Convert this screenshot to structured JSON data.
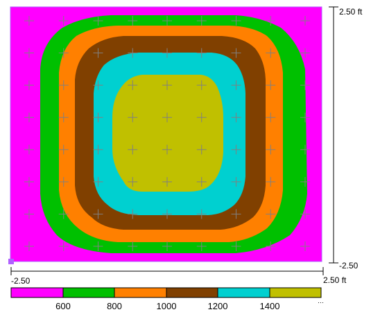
{
  "plot": {
    "x_axis": {
      "min_label": "-2.50",
      "max_label": "2.50 ft"
    },
    "y_axis": {
      "max_label": "2.50 ft",
      "min_label": "-2.50"
    }
  },
  "chart_data": {
    "type": "heatmap",
    "description_free": "",
    "x_range": [
      -2.5,
      2.5
    ],
    "y_range": [
      -2.5,
      2.5
    ],
    "units": "ft",
    "contour_levels": [
      600,
      800,
      1000,
      1200,
      1400
    ],
    "bands": [
      {
        "range": "< 600",
        "color": "#ff00ff"
      },
      {
        "range": "600-800",
        "color": "#00c000"
      },
      {
        "range": "800-1000",
        "color": "#ff8000"
      },
      {
        "range": "1000-1200",
        "color": "#804000"
      },
      {
        "range": "1200-1400",
        "color": "#00d0d0"
      },
      {
        "range": "> 1400",
        "color": "#c0c000"
      }
    ],
    "grid_markers": {
      "columns": 9,
      "rows": 8,
      "color": "#808080"
    }
  },
  "legend": {
    "tick_labels": [
      "600",
      "800",
      "1000",
      "1200",
      "1400"
    ],
    "end_marker": "⋯"
  }
}
